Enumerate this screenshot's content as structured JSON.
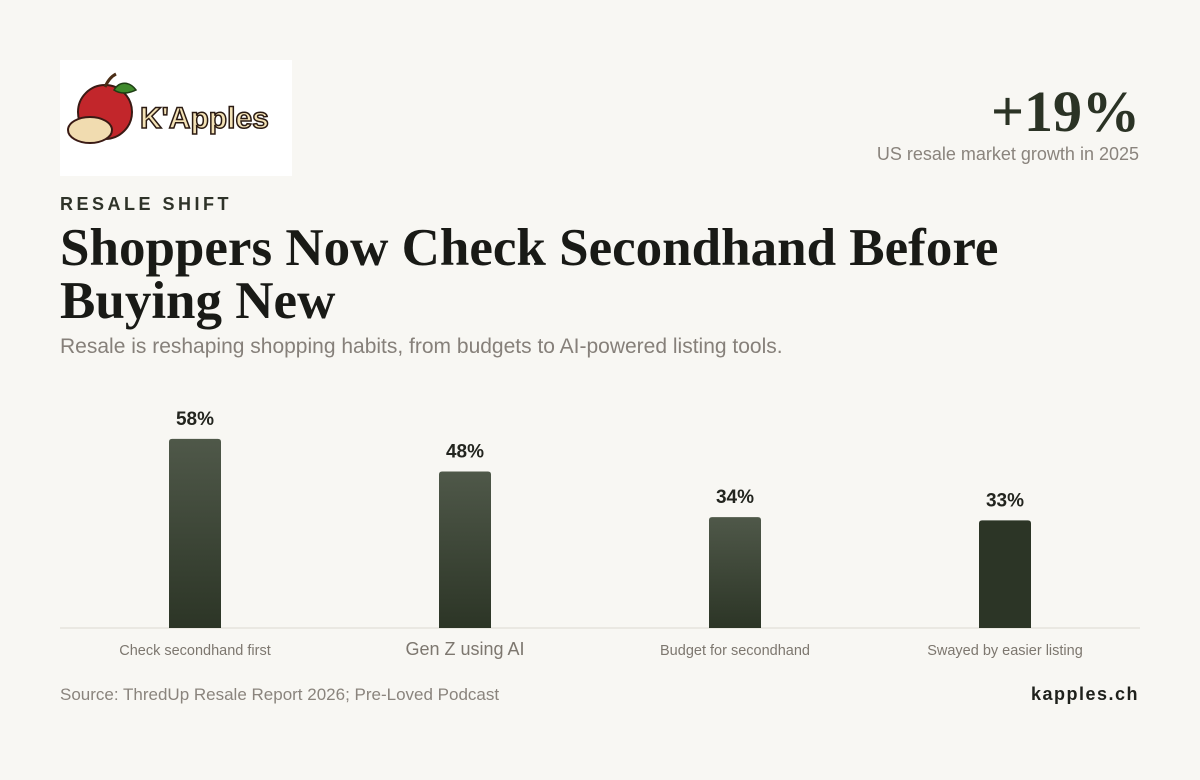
{
  "header": {
    "logo_text": "K'Apples",
    "kicker": "RESALE SHIFT",
    "title": "Shoppers Now Check Secondhand Before Buying New",
    "subtitle": "Resale is reshaping shopping habits, from budgets to AI-powered listing tools.",
    "stat": "+19%",
    "stat_label": "US resale market growth in 2025"
  },
  "chart_data": {
    "type": "bar",
    "categories": [
      "Check secondhand first",
      "Gen Z using AI",
      "Budget for secondhand",
      "Swayed by easier listing"
    ],
    "values": [
      58,
      48,
      34,
      33
    ],
    "value_labels": [
      "58%",
      "48%",
      "34%",
      "33%"
    ],
    "colors": [
      "#4f5849",
      "#4f5849",
      "#4f5849",
      "#2c3526"
    ]
  },
  "footer": {
    "source": "Source: ThredUp Resale Report 2026; Pre-Loved Podcast",
    "site": "kapples.ch"
  }
}
